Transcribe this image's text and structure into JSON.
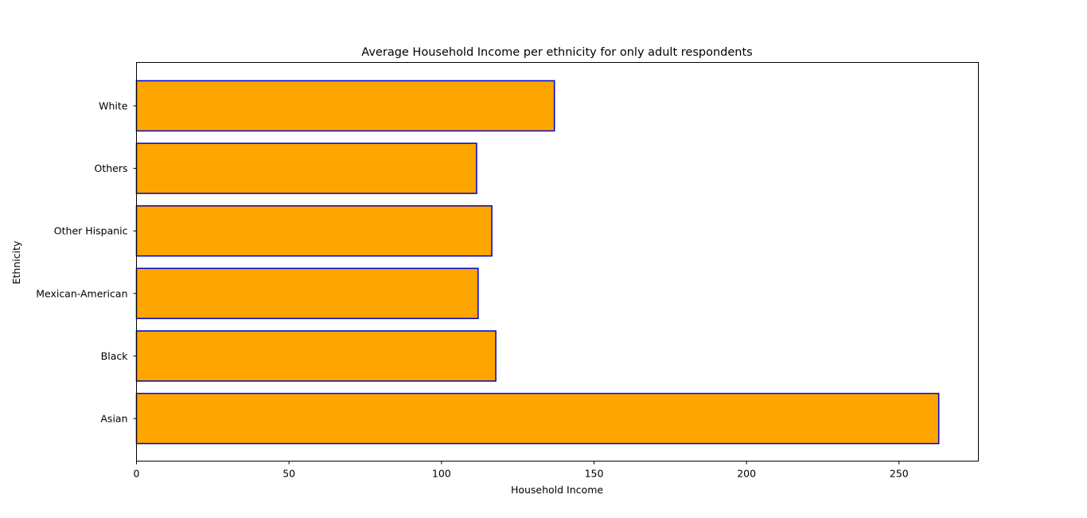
{
  "chart_data": {
    "type": "bar",
    "orientation": "horizontal",
    "title": "Average Household Income per ethnicity for only adult respondents",
    "xlabel": "Household Income",
    "ylabel": "Ethnicity",
    "categories": [
      "Asian",
      "Black",
      "Mexican-American",
      "Other Hispanic",
      "Others",
      "White"
    ],
    "values": [
      263,
      117.8,
      112,
      116.5,
      111.5,
      137
    ],
    "xlim": [
      0,
      276
    ],
    "xticks": [
      0,
      50,
      100,
      150,
      200,
      250
    ],
    "grid": false,
    "colors": {
      "bar_fill": "#ffa500",
      "bar_edge": "#0000cd",
      "axes": "#000000",
      "background": "#ffffff"
    }
  }
}
